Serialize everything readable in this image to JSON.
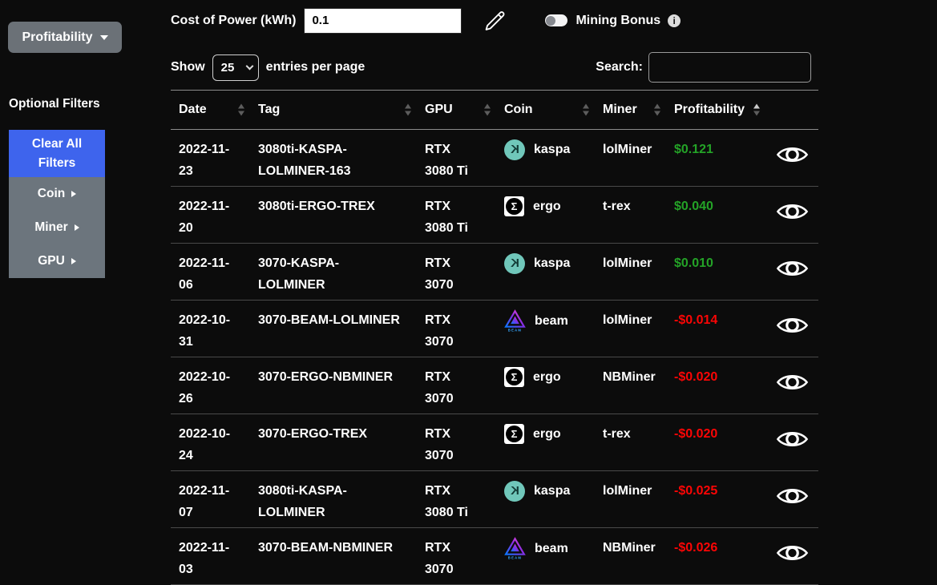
{
  "sidebar": {
    "profitability_dropdown_label": "Profitability",
    "optional_filters_label": "Optional Filters",
    "clear_all_filters_label": "Clear All Filters",
    "filters": [
      {
        "label": "Coin"
      },
      {
        "label": "Miner"
      },
      {
        "label": "GPU"
      }
    ]
  },
  "controls": {
    "cost_of_power_label": "Cost of Power (kWh)",
    "cost_of_power_value": "0.1",
    "mining_bonus_label": "Mining Bonus",
    "mining_bonus_enabled": false,
    "show_label": "Show",
    "entries_per_page_value": "25",
    "entries_per_page_suffix": "entries per page",
    "search_label": "Search:",
    "search_value": ""
  },
  "table": {
    "columns": [
      {
        "label": "Date",
        "sort": "none"
      },
      {
        "label": "Tag",
        "sort": "none"
      },
      {
        "label": "GPU",
        "sort": "none"
      },
      {
        "label": "Coin",
        "sort": "none"
      },
      {
        "label": "Miner",
        "sort": "none"
      },
      {
        "label": "Profitability",
        "sort": "asc"
      }
    ],
    "rows": [
      {
        "date": "2022-11-23",
        "tag": "3080ti-KASPA-LOLMINER-163",
        "gpu": "RTX 3080 Ti",
        "coin": "kaspa",
        "miner": "lolMiner",
        "profitability": "$0.121"
      },
      {
        "date": "2022-11-20",
        "tag": "3080ti-ERGO-TREX",
        "gpu": "RTX 3080 Ti",
        "coin": "ergo",
        "miner": "t-rex",
        "profitability": "$0.040"
      },
      {
        "date": "2022-11-06",
        "tag": "3070-KASPA-LOLMINER",
        "gpu": "RTX 3070",
        "coin": "kaspa",
        "miner": "lolMiner",
        "profitability": "$0.010"
      },
      {
        "date": "2022-10-31",
        "tag": "3070-BEAM-LOLMINER",
        "gpu": "RTX 3070",
        "coin": "beam",
        "miner": "lolMiner",
        "profitability": "-$0.014"
      },
      {
        "date": "2022-10-26",
        "tag": "3070-ERGO-NBMINER",
        "gpu": "RTX 3070",
        "coin": "ergo",
        "miner": "NBMiner",
        "profitability": "-$0.020"
      },
      {
        "date": "2022-10-24",
        "tag": "3070-ERGO-TREX",
        "gpu": "RTX 3070",
        "coin": "ergo",
        "miner": "t-rex",
        "profitability": "-$0.020"
      },
      {
        "date": "2022-11-07",
        "tag": "3080ti-KASPA-LOLMINER",
        "gpu": "RTX 3080 Ti",
        "coin": "kaspa",
        "miner": "lolMiner",
        "profitability": "-$0.025"
      },
      {
        "date": "2022-11-03",
        "tag": "3070-BEAM-NBMINER",
        "gpu": "RTX 3070",
        "coin": "beam",
        "miner": "NBMiner",
        "profitability": "-$0.026"
      }
    ]
  },
  "colors": {
    "positive_profit": "#24a327",
    "negative_profit": "#fb0505",
    "accent_blue": "#3e64ed",
    "button_gray": "#6c757d",
    "kaspa_teal": "#70c7ba",
    "background": "#0c0c0c"
  }
}
